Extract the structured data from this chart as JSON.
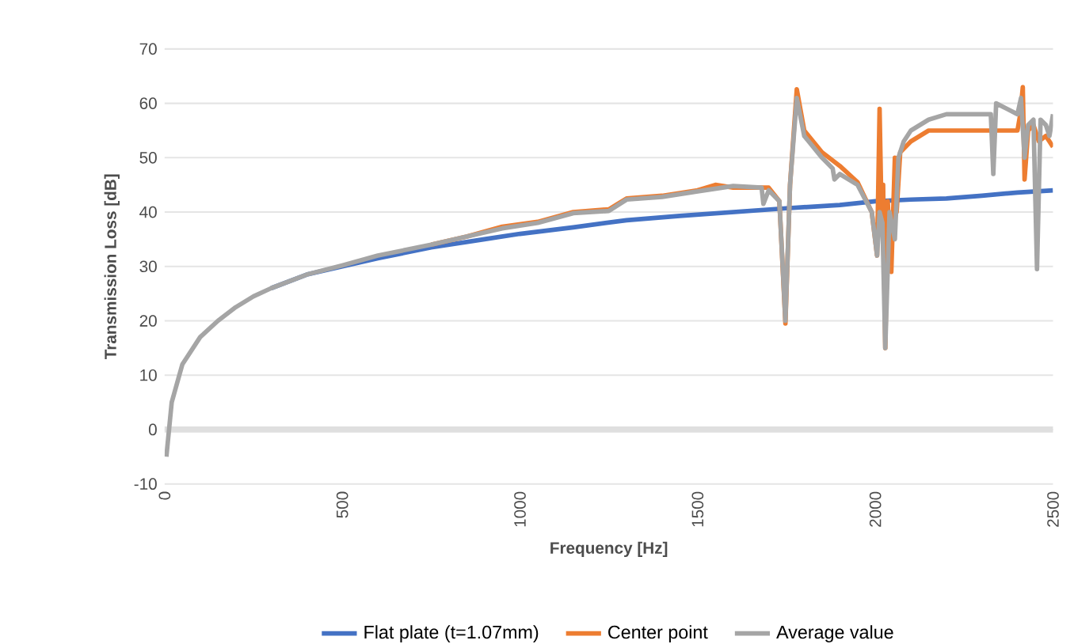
{
  "chart_data": {
    "type": "line",
    "xlabel": "Frequency [Hz]",
    "ylabel": "Transmission Loss [dB]",
    "xlim": [
      0,
      2500
    ],
    "ylim": [
      -10,
      70
    ],
    "xticks": [
      0,
      500,
      1000,
      1500,
      2000,
      2500
    ],
    "yticks": [
      -10,
      0,
      10,
      20,
      30,
      40,
      50,
      60,
      70
    ],
    "grid": "y",
    "legend": "bottom",
    "marker": "none",
    "line_style": "solid",
    "series": [
      {
        "name": "Flat plate (t=1.07mm)",
        "color": "#4472c4",
        "x": [
          300,
          400,
          500,
          600,
          750,
          900,
          1000,
          1150,
          1300,
          1450,
          1600,
          1750,
          1900,
          2000,
          2100,
          2200,
          2300,
          2400,
          2500
        ],
        "values": [
          26,
          28.5,
          30,
          31.5,
          33.5,
          35,
          36,
          37.2,
          38.5,
          39.3,
          40,
          40.7,
          41.3,
          42,
          42.3,
          42.5,
          43,
          43.6,
          44
        ]
      },
      {
        "name": "Center point",
        "color": "#ed7d31",
        "x": [
          750,
          850,
          950,
          1050,
          1150,
          1250,
          1300,
          1400,
          1500,
          1550,
          1600,
          1700,
          1730,
          1747,
          1760,
          1779,
          1800,
          1850,
          1900,
          1950,
          1990,
          2005,
          2012,
          2018,
          2022,
          2028,
          2035,
          2045,
          2055,
          2060,
          2070,
          2100,
          2150,
          2200,
          2300,
          2400,
          2408,
          2415,
          2420,
          2430,
          2445,
          2460,
          2480,
          2500
        ],
        "values": [
          34,
          35.5,
          37.3,
          38.2,
          40,
          40.5,
          42.5,
          43,
          44,
          45,
          44.5,
          44.5,
          42,
          19.5,
          45,
          62.6,
          55,
          51,
          48.5,
          45.5,
          40,
          32,
          59,
          38,
          45,
          15,
          42,
          29,
          50,
          40,
          51,
          53,
          55,
          55,
          55,
          55,
          58,
          63,
          46,
          55,
          56,
          53,
          54,
          52
        ]
      },
      {
        "name": "Average value",
        "color": "#a5a5a5",
        "x": [
          5,
          20,
          50,
          100,
          150,
          200,
          250,
          300,
          400,
          500,
          600,
          750,
          850,
          950,
          1050,
          1150,
          1250,
          1300,
          1400,
          1500,
          1600,
          1680,
          1685,
          1700,
          1730,
          1747,
          1760,
          1779,
          1800,
          1850,
          1880,
          1885,
          1900,
          1950,
          1990,
          2005,
          2012,
          2020,
          2028,
          2040,
          2055,
          2065,
          2080,
          2100,
          2150,
          2200,
          2300,
          2325,
          2332,
          2340,
          2400,
          2410,
          2420,
          2430,
          2445,
          2455,
          2465,
          2480,
          2490,
          2500
        ],
        "values": [
          -5,
          5,
          12,
          17,
          20,
          22.5,
          24.5,
          26,
          28.5,
          30.2,
          32,
          34,
          35.5,
          37,
          38,
          39.8,
          40.2,
          42.3,
          42.8,
          43.8,
          44.8,
          44.5,
          41.5,
          44,
          42,
          20,
          45,
          61,
          54,
          50,
          48,
          46,
          47,
          45,
          40,
          32,
          40,
          38,
          15,
          40,
          35,
          50,
          53,
          55,
          57,
          58,
          58,
          58,
          47,
          60,
          58,
          61,
          50,
          56,
          57,
          29.5,
          57,
          56,
          54,
          58
        ]
      }
    ]
  }
}
